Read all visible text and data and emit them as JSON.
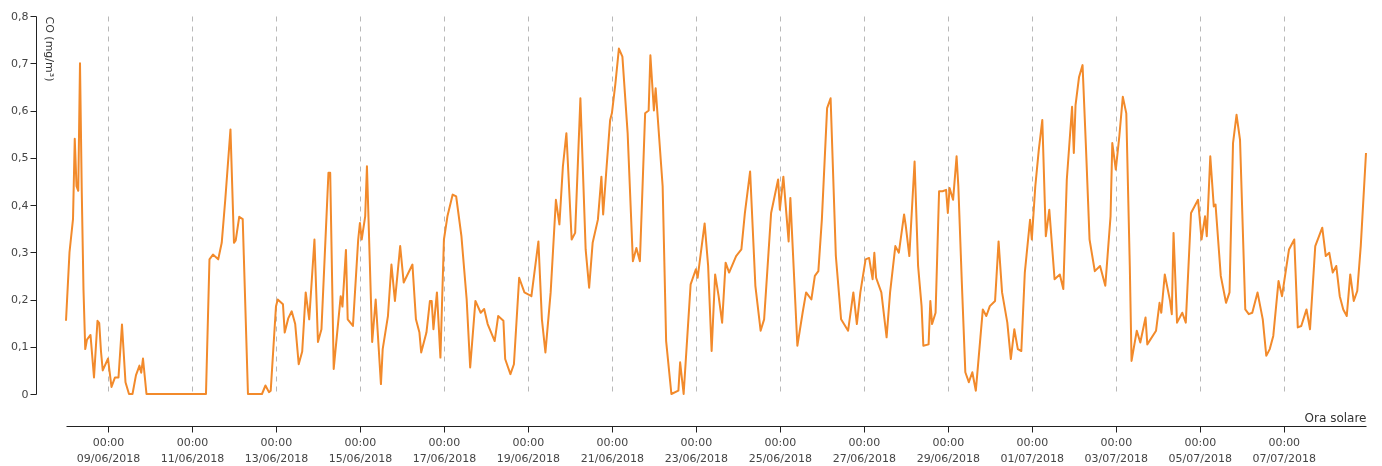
{
  "chart_data": {
    "type": "line",
    "xlabel": "Ora solare",
    "ylabel": "CO (mg/m³)",
    "grid": "x",
    "line_style": "solid",
    "xlim": [
      "2018-06-08T00:00",
      "2018-07-08T23:00"
    ],
    "ylim": [
      0,
      0.8
    ],
    "yticks": [
      0,
      {
        "value": 0.1,
        "label": "0,1"
      },
      {
        "value": 0.2,
        "label": "0,2"
      },
      {
        "value": 0.3,
        "label": "0,3"
      },
      {
        "value": 0.4,
        "label": "0,4"
      },
      {
        "value": 0.5,
        "label": "0,5"
      },
      {
        "value": 0.6,
        "label": "0,6"
      },
      {
        "value": 0.7,
        "label": "0,7"
      },
      {
        "value": 0.8,
        "label": "0,8"
      }
    ],
    "xticks": [
      {
        "value": "2018-06-09T00:00",
        "label": "00:00\n09/06/2018"
      },
      {
        "value": "2018-06-11T00:00",
        "label": "00:00\n11/06/2018"
      },
      {
        "value": "2018-06-13T00:00",
        "label": "00:00\n13/06/2018"
      },
      {
        "value": "2018-06-15T00:00",
        "label": "00:00\n15/06/2018"
      },
      {
        "value": "2018-06-17T00:00",
        "label": "00:00\n17/06/2018"
      },
      {
        "value": "2018-06-19T00:00",
        "label": "00:00\n19/06/2018"
      },
      {
        "value": "2018-06-21T00:00",
        "label": "00:00\n21/06/2018"
      },
      {
        "value": "2018-06-23T00:00",
        "label": "00:00\n23/06/2018"
      },
      {
        "value": "2018-06-25T00:00",
        "label": "00:00\n25/06/2018"
      },
      {
        "value": "2018-06-27T00:00",
        "label": "00:00\n27/06/2018"
      },
      {
        "value": "2018-06-29T00:00",
        "label": "00:00\n29/06/2018"
      },
      {
        "value": "2018-07-01T00:00",
        "label": "00:00\n01/07/2018"
      },
      {
        "value": "2018-07-03T00:00",
        "label": "00:00\n03/07/2018"
      },
      {
        "value": "2018-07-05T00:00",
        "label": "00:00\n05/07/2018"
      },
      {
        "value": "2018-07-07T00:00",
        "label": "00:00\n07/07/2018"
      }
    ],
    "x": [
      "2018-06-08T00:00",
      "2018-06-08T02:00",
      "2018-06-08T04:00",
      "2018-06-08T05:00",
      "2018-06-08T06:00",
      "2018-06-08T07:00",
      "2018-06-08T08:00",
      "2018-06-08T09:00",
      "2018-06-08T10:00",
      "2018-06-08T11:00",
      "2018-06-08T12:00",
      "2018-06-08T14:00",
      "2018-06-08T16:00",
      "2018-06-08T18:00",
      "2018-06-08T19:00",
      "2018-06-08T20:00",
      "2018-06-08T21:00",
      "2018-06-09T00:00",
      "2018-06-09T02:00",
      "2018-06-09T04:00",
      "2018-06-09T06:00",
      "2018-06-09T08:00",
      "2018-06-09T10:00",
      "2018-06-09T12:00",
      "2018-06-09T14:00",
      "2018-06-09T16:00",
      "2018-06-09T18:00",
      "2018-06-09T19:00",
      "2018-06-09T20:00",
      "2018-06-09T22:00",
      "2018-06-11T08:00",
      "2018-06-11T10:00",
      "2018-06-11T12:00",
      "2018-06-11T15:00",
      "2018-06-11T17:00",
      "2018-06-11T19:00",
      "2018-06-11T22:00",
      "2018-06-12T00:00",
      "2018-06-12T01:00",
      "2018-06-12T03:00",
      "2018-06-12T05:00",
      "2018-06-12T08:00",
      "2018-06-12T12:00",
      "2018-06-12T16:00",
      "2018-06-12T18:00",
      "2018-06-12T20:00",
      "2018-06-12T21:00",
      "2018-06-13T00:00",
      "2018-06-13T01:00",
      "2018-06-13T04:00",
      "2018-06-13T05:00",
      "2018-06-13T07:00",
      "2018-06-13T09:00",
      "2018-06-13T11:00",
      "2018-06-13T13:00",
      "2018-06-13T15:00",
      "2018-06-13T17:00",
      "2018-06-13T19:00",
      "2018-06-13T22:00",
      "2018-06-14T00:00",
      "2018-06-14T02:00",
      "2018-06-14T06:00",
      "2018-06-14T07:00",
      "2018-06-14T09:00",
      "2018-06-14T13:00",
      "2018-06-14T14:00",
      "2018-06-14T16:00",
      "2018-06-14T17:00",
      "2018-06-14T20:00",
      "2018-06-14T23:00",
      "2018-06-15T00:00",
      "2018-06-15T01:00",
      "2018-06-15T03:00",
      "2018-06-15T04:00",
      "2018-06-15T07:00",
      "2018-06-15T09:00",
      "2018-06-15T12:00",
      "2018-06-15T13:00",
      "2018-06-15T16:00",
      "2018-06-15T18:00",
      "2018-06-15T20:00",
      "2018-06-15T23:00",
      "2018-06-16T01:00",
      "2018-06-16T06:00",
      "2018-06-16T08:00",
      "2018-06-16T10:00",
      "2018-06-16T11:00",
      "2018-06-16T14:00",
      "2018-06-16T16:00",
      "2018-06-16T17:00",
      "2018-06-16T18:00",
      "2018-06-16T20:00",
      "2018-06-16T22:00",
      "2018-06-17T00:00",
      "2018-06-17T02:00",
      "2018-06-17T05:00",
      "2018-06-17T07:00",
      "2018-06-17T10:00",
      "2018-06-17T13:00",
      "2018-06-17T15:00",
      "2018-06-17T18:00",
      "2018-06-17T21:00",
      "2018-06-17T23:00",
      "2018-06-18T01:00",
      "2018-06-18T05:00",
      "2018-06-18T07:00",
      "2018-06-18T10:00",
      "2018-06-18T11:00",
      "2018-06-18T14:00",
      "2018-06-18T16:00",
      "2018-06-18T19:00",
      "2018-06-18T22:00",
      "2018-06-19T02:00",
      "2018-06-19T06:00",
      "2018-06-19T08:00",
      "2018-06-19T10:00",
      "2018-06-19T13:00",
      "2018-06-19T16:00",
      "2018-06-19T18:00",
      "2018-06-19T20:00",
      "2018-06-19T22:00",
      "2018-06-20T01:00",
      "2018-06-20T03:00",
      "2018-06-20T06:00",
      "2018-06-20T09:00",
      "2018-06-20T11:00",
      "2018-06-20T13:00",
      "2018-06-20T16:00",
      "2018-06-20T18:00",
      "2018-06-20T19:00",
      "2018-06-20T21:00",
      "2018-06-20T23:00",
      "2018-06-21T00:00",
      "2018-06-21T02:00",
      "2018-06-21T04:00",
      "2018-06-21T06:00",
      "2018-06-21T09:00",
      "2018-06-21T12:00",
      "2018-06-21T14:00",
      "2018-06-21T16:00",
      "2018-06-21T19:00",
      "2018-06-21T21:00",
      "2018-06-21T22:00",
      "2018-06-22T00:00",
      "2018-06-22T01:00",
      "2018-06-22T05:00",
      "2018-06-22T07:00",
      "2018-06-22T10:00",
      "2018-06-22T14:00",
      "2018-06-22T15:00",
      "2018-06-22T17:00",
      "2018-06-22T21:00",
      "2018-06-23T00:00",
      "2018-06-23T01:00",
      "2018-06-23T05:00",
      "2018-06-23T07:00",
      "2018-06-23T09:00",
      "2018-06-23T11:00",
      "2018-06-23T13:00",
      "2018-06-23T15:00",
      "2018-06-23T17:00",
      "2018-06-23T19:00",
      "2018-06-23T23:00",
      "2018-06-24T02:00",
      "2018-06-24T04:00",
      "2018-06-24T07:00",
      "2018-06-24T10:00",
      "2018-06-24T13:00",
      "2018-06-24T15:00",
      "2018-06-24T19:00",
      "2018-06-24T23:00",
      "2018-06-25T00:00",
      "2018-06-25T02:00",
      "2018-06-25T05:00",
      "2018-06-25T06:00",
      "2018-06-25T10:00",
      "2018-06-25T13:00",
      "2018-06-25T15:00",
      "2018-06-25T18:00",
      "2018-06-25T20:00",
      "2018-06-25T22:00",
      "2018-06-26T00:00",
      "2018-06-26T03:00",
      "2018-06-26T05:00",
      "2018-06-26T08:00",
      "2018-06-26T11:00",
      "2018-06-26T15:00",
      "2018-06-26T18:00",
      "2018-06-26T20:00",
      "2018-06-26T22:00",
      "2018-06-27T01:00",
      "2018-06-27T03:00",
      "2018-06-27T05:00",
      "2018-06-27T06:00",
      "2018-06-27T07:00",
      "2018-06-27T10:00",
      "2018-06-27T13:00",
      "2018-06-27T15:00",
      "2018-06-27T18:00",
      "2018-06-27T20:00",
      "2018-06-27T23:00",
      "2018-06-28T00:00",
      "2018-06-28T02:00",
      "2018-06-28T05:00",
      "2018-06-28T07:00",
      "2018-06-28T09:00",
      "2018-06-28T10:00",
      "2018-06-28T13:00",
      "2018-06-28T14:00",
      "2018-06-28T15:00",
      "2018-06-28T17:00",
      "2018-06-28T19:00",
      "2018-06-28T21:00",
      "2018-06-28T23:00",
      "2018-06-29T00:00",
      "2018-06-29T01:00",
      "2018-06-29T03:00",
      "2018-06-29T05:00",
      "2018-06-29T06:00",
      "2018-06-29T08:00",
      "2018-06-29T10:00",
      "2018-06-29T12:00",
      "2018-06-29T14:00",
      "2018-06-29T16:00",
      "2018-06-29T20:00",
      "2018-06-29T22:00",
      "2018-06-30T00:00",
      "2018-06-30T03:00",
      "2018-06-30T05:00",
      "2018-06-30T07:00",
      "2018-06-30T10:00",
      "2018-06-30T12:00",
      "2018-06-30T14:00",
      "2018-06-30T16:00",
      "2018-06-30T18:00",
      "2018-06-30T20:00",
      "2018-06-30T23:00",
      "2018-07-01T00:00",
      "2018-07-01T02:00",
      "2018-07-01T04:00",
      "2018-07-01T06:00",
      "2018-07-01T08:00",
      "2018-07-01T10:00",
      "2018-07-01T13:00",
      "2018-07-01T16:00",
      "2018-07-01T18:00",
      "2018-07-01T20:00",
      "2018-07-01T23:00",
      "2018-07-02T00:00",
      "2018-07-02T01:00",
      "2018-07-02T03:00",
      "2018-07-02T05:00",
      "2018-07-02T07:00",
      "2018-07-02T09:00",
      "2018-07-02T12:00",
      "2018-07-02T15:00",
      "2018-07-02T16:00",
      "2018-07-02T18:00",
      "2018-07-02T21:00",
      "2018-07-02T22:00",
      "2018-07-03T00:00",
      "2018-07-03T02:00",
      "2018-07-03T04:00",
      "2018-07-03T06:00",
      "2018-07-03T08:00",
      "2018-07-03T09:00",
      "2018-07-03T12:00",
      "2018-07-03T14:00",
      "2018-07-03T17:00",
      "2018-07-03T18:00",
      "2018-07-03T23:00",
      "2018-07-04T01:00",
      "2018-07-04T02:00",
      "2018-07-04T04:00",
      "2018-07-04T07:00",
      "2018-07-04T08:00",
      "2018-07-04T09:00",
      "2018-07-04T11:00",
      "2018-07-04T14:00",
      "2018-07-04T16:00",
      "2018-07-04T19:00",
      "2018-07-04T23:00",
      "2018-07-05T01:00",
      "2018-07-05T03:00",
      "2018-07-05T04:00",
      "2018-07-05T06:00",
      "2018-07-05T08:00",
      "2018-07-05T09:00",
      "2018-07-05T12:00",
      "2018-07-05T15:00",
      "2018-07-05T17:00",
      "2018-07-05T19:00",
      "2018-07-05T21:00",
      "2018-07-05T23:00",
      "2018-07-06T02:00",
      "2018-07-06T04:00",
      "2018-07-06T06:00",
      "2018-07-06T09:00",
      "2018-07-06T12:00",
      "2018-07-06T14:00",
      "2018-07-06T16:00",
      "2018-07-06T18:00",
      "2018-07-06T21:00",
      "2018-07-06T23:00",
      "2018-07-07T01:00",
      "2018-07-07T03:00",
      "2018-07-07T06:00",
      "2018-07-07T08:00",
      "2018-07-07T10:00",
      "2018-07-07T13:00",
      "2018-07-07T15:00",
      "2018-07-07T18:00",
      "2018-07-07T22:00",
      "2018-07-08T00:00",
      "2018-07-08T02:00",
      "2018-07-08T04:00",
      "2018-07-08T06:00",
      "2018-07-08T08:00",
      "2018-07-08T10:00",
      "2018-07-08T12:00",
      "2018-07-08T14:00",
      "2018-07-08T16:00",
      "2018-07-08T18:00",
      "2018-07-08T20:00",
      "2018-07-08T23:00"
    ],
    "series": [
      {
        "color": "#f28a2b",
        "values": [
          0.155,
          0.3,
          0.37,
          0.54,
          0.44,
          0.43,
          0.7,
          0.43,
          0.22,
          0.095,
          0.115,
          0.125,
          0.035,
          0.155,
          0.15,
          0.09,
          0.05,
          0.075,
          0.015,
          0.035,
          0.035,
          0.147,
          0.025,
          0,
          0,
          0.04,
          0.06,
          0.045,
          0.075,
          0,
          0,
          0.285,
          0.295,
          0.285,
          0.32,
          0.41,
          0.56,
          0.32,
          0.325,
          0.375,
          0.37,
          0,
          0,
          0,
          0.018,
          0.004,
          0.007,
          0.185,
          0.2,
          0.19,
          0.13,
          0.16,
          0.175,
          0.148,
          0.063,
          0.09,
          0.215,
          0.158,
          0.327,
          0.11,
          0.137,
          0.468,
          0.468,
          0.053,
          0.207,
          0.185,
          0.305,
          0.158,
          0.144,
          0.327,
          0.362,
          0.327,
          0.376,
          0.482,
          0.11,
          0.2,
          0.021,
          0.095,
          0.165,
          0.274,
          0.197,
          0.313,
          0.236,
          0.274,
          0.158,
          0.13,
          0.088,
          0.13,
          0.197,
          0.197,
          0.137,
          0.215,
          0.077,
          0.327,
          0.376,
          0.422,
          0.418,
          0.334,
          0.2,
          0.056,
          0.197,
          0.172,
          0.18,
          0.148,
          0.112,
          0.165,
          0.155,
          0.074,
          0.042,
          0.063,
          0.246,
          0.215,
          0.207,
          0.323,
          0.158,
          0.088,
          0.215,
          0.411,
          0.359,
          0.482,
          0.552,
          0.327,
          0.341,
          0.626,
          0.306,
          0.225,
          0.32,
          0.369,
          0.46,
          0.38,
          0.482,
          0.58,
          0.594,
          0.657,
          0.731,
          0.714,
          0.552,
          0.281,
          0.309,
          0.281,
          0.594,
          0.6,
          0.717,
          0.6,
          0.647,
          0.44,
          0.112,
          0,
          0.007,
          0.067,
          0,
          0.232,
          0.264,
          0.246,
          0.361,
          0.271,
          0.091,
          0.253,
          0.207,
          0.151,
          0.278,
          0.257,
          0.292,
          0.306,
          0.383,
          0.471,
          0.229,
          0.134,
          0.158,
          0.383,
          0.454,
          0.39,
          0.46,
          0.323,
          0.415,
          0.102,
          0.172,
          0.215,
          0.2,
          0.25,
          0.26,
          0.369,
          0.605,
          0.626,
          0.292,
          0.158,
          0.134,
          0.215,
          0.148,
          0.215,
          0.285,
          0.288,
          0.243,
          0.299,
          0.246,
          0.215,
          0.12,
          0.215,
          0.313,
          0.299,
          0.38,
          0.355,
          0.292,
          0.492,
          0.271,
          0.186,
          0.102,
          0.105,
          0.197,
          0.148,
          0.172,
          0.429,
          0.429,
          0.432,
          0.383,
          0.436,
          0.411,
          0.503,
          0.44,
          0.236,
          0.046,
          0.025,
          0.046,
          0.007,
          0.179,
          0.165,
          0.186,
          0.197,
          0.323,
          0.215,
          0.151,
          0.074,
          0.137,
          0.095,
          0.091,
          0.257,
          0.369,
          0.327,
          0.44,
          0.517,
          0.58,
          0.334,
          0.39,
          0.243,
          0.253,
          0.222,
          0.454,
          0.608,
          0.51,
          0.612,
          0.671,
          0.696,
          0.517,
          0.327,
          0.26,
          0.271,
          0.257,
          0.229,
          0.376,
          0.531,
          0.475,
          0.545,
          0.629,
          0.594,
          0.271,
          0.07,
          0.134,
          0.109,
          0.162,
          0.105,
          0.134,
          0.193,
          0.172,
          0.253,
          0.197,
          0.169,
          0.341,
          0.151,
          0.172,
          0.151,
          0.383,
          0.411,
          0.327,
          0.376,
          0.334,
          0.503,
          0.397,
          0.401,
          0.25,
          0.193,
          0.215,
          0.531,
          0.591,
          0.538,
          0.179,
          0.169,
          0.172,
          0.215,
          0.158,
          0.081,
          0.095,
          0.123,
          0.239,
          0.207,
          0.257,
          0.306,
          0.327,
          0.141,
          0.144,
          0.179,
          0.137,
          0.313,
          0.352,
          0.292,
          0.299,
          0.257,
          0.271,
          0.207,
          0.179,
          0.165,
          0.253,
          0.197,
          0.218,
          0.313,
          0.51
        ]
      }
    ]
  }
}
